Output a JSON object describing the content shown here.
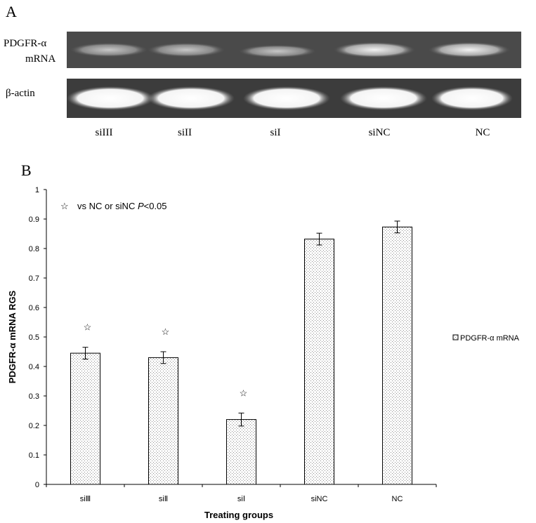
{
  "panel_a": {
    "label": "A",
    "rows": [
      {
        "label": [
          "PDGFR-α",
          "mRNA"
        ]
      },
      {
        "label": [
          "β-actin"
        ]
      }
    ],
    "lanes": [
      "siIII",
      "siII",
      "siI",
      "siNC",
      "NC"
    ]
  },
  "panel_b": {
    "label": "B"
  },
  "chart_data": {
    "type": "bar",
    "y_label": "PDGFR-α mRNA RGS",
    "x_label": "Treating groups",
    "categories": [
      "siⅢ",
      "siⅡ",
      "siⅠ",
      "siNC",
      "NC"
    ],
    "series": [
      {
        "name": "PDGFR-α mRNA",
        "color": "#8a8a8a",
        "values": [
          0.445,
          0.43,
          0.22,
          0.832,
          0.873
        ],
        "errors": [
          0.02,
          0.02,
          0.022,
          0.02,
          0.02
        ]
      }
    ],
    "significant": [
      true,
      true,
      true,
      false,
      false
    ],
    "significance_marker": "☆",
    "annotation": {
      "marker": "☆",
      "text": [
        "vs NC or siNC ",
        "P",
        "<0.05"
      ]
    },
    "ylim": [
      0,
      1
    ],
    "yticks": [
      0,
      0.1,
      0.2,
      0.3,
      0.4,
      0.5,
      0.6,
      0.7,
      0.8,
      0.9,
      1
    ],
    "legend": "right"
  }
}
